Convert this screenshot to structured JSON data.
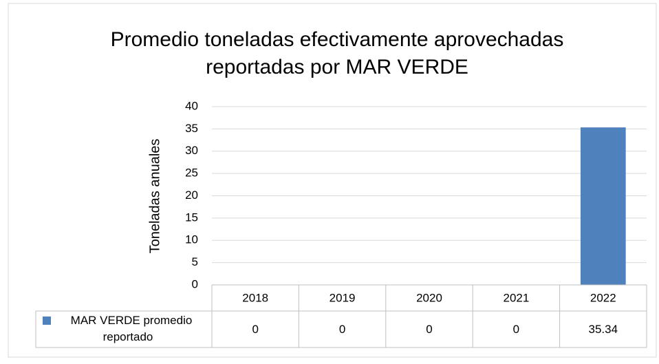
{
  "chart_data": {
    "type": "bar",
    "title": "Promedio toneladas efectivamente aprovechadas reportadas por MAR VERDE",
    "y_label": "Toneladas anuales",
    "categories": [
      "2018",
      "2019",
      "2020",
      "2021",
      "2022"
    ],
    "series": [
      {
        "name": "MAR VERDE promedio reportado",
        "color": "#4f81bd",
        "values": [
          0,
          0,
          0,
          0,
          35.34
        ]
      }
    ],
    "ylim": [
      0,
      40
    ],
    "yticks": [
      0,
      5,
      10,
      15,
      20,
      25,
      30,
      35,
      40
    ],
    "grid": true,
    "data_table": true
  }
}
